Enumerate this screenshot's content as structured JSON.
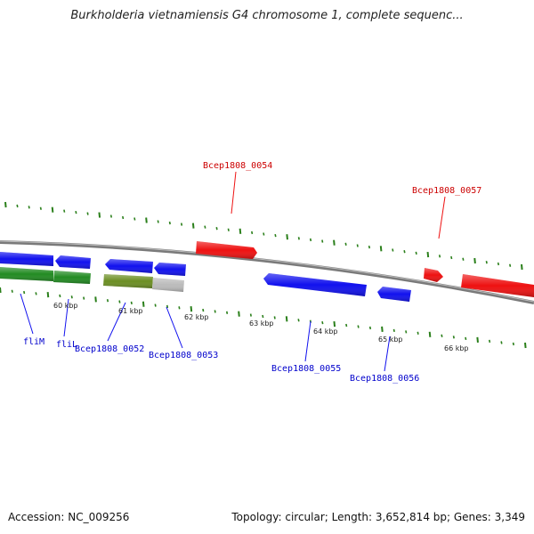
{
  "title": "Burkholderia vietnamiensis G4 chromosome 1, complete sequenc...",
  "footer": {
    "accession": "Accession: NC_009256",
    "stats": "Topology: circular; Length: 3,652,814 bp; Genes: 3,349"
  },
  "colors": {
    "forward_gene": "#ee1111",
    "reverse_gene": "#1111ee",
    "cds_green": "#228b22",
    "cds_olive": "#6b8e23",
    "cds_grey": "#bbbbbb",
    "backbone": "#888888",
    "tick": "#2a7f1a"
  },
  "axis": {
    "tick_labels": [
      "60 kbp",
      "61 kbp",
      "62 kbp",
      "63 kbp",
      "64 kbp",
      "65 kbp",
      "66 kbp"
    ]
  },
  "genes": {
    "forward": [
      {
        "label": "Bcep1808_0054",
        "color": "#ee1111"
      },
      {
        "label": "Bcep1808_0057",
        "color": "#ee1111"
      }
    ],
    "reverse": [
      {
        "label": "fliM",
        "color": "#1111ee"
      },
      {
        "label": "fliL",
        "color": "#1111ee"
      },
      {
        "label": "Bcep1808_0052",
        "color": "#1111ee"
      },
      {
        "label": "Bcep1808_0053",
        "color": "#1111ee"
      },
      {
        "label": "Bcep1808_0055",
        "color": "#1111ee"
      },
      {
        "label": "Bcep1808_0056",
        "color": "#1111ee"
      }
    ]
  }
}
